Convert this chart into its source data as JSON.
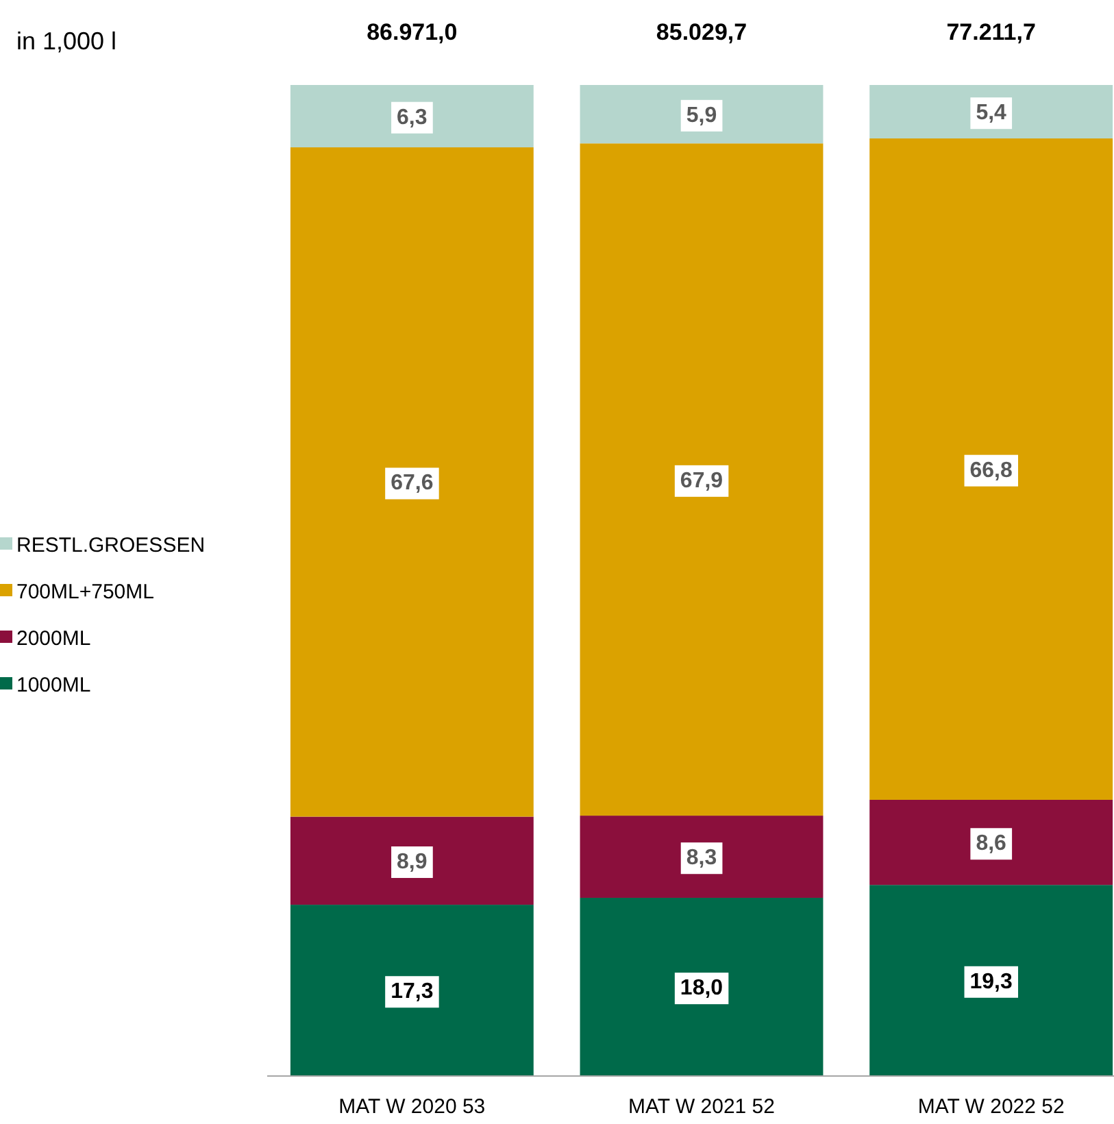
{
  "chart_data": {
    "type": "bar",
    "stacked": true,
    "legend": "left",
    "categories": [
      "MAT W 2020 53",
      "MAT W 2021 52",
      "MAT W 2022 52"
    ],
    "series": [
      {
        "name": "1000ML",
        "color": "#006a4a",
        "values": [
          17.3,
          18.0,
          19.3
        ],
        "value_labels": [
          "17,3",
          "18,0",
          "19,3"
        ]
      },
      {
        "name": "2000ML",
        "color": "#8b0f3c",
        "values": [
          8.9,
          8.3,
          8.6
        ],
        "value_labels": [
          "8,9",
          "8,3",
          "8,6"
        ]
      },
      {
        "name": "700ML+750ML",
        "color": "#dba200",
        "values": [
          67.6,
          67.9,
          66.8
        ],
        "value_labels": [
          "67,6",
          "67,9",
          "66,8"
        ]
      },
      {
        "name": "RESTL.GROESSEN",
        "color": "#b5d6cd",
        "values": [
          6.3,
          5.9,
          5.4
        ],
        "value_labels": [
          "6,3",
          "5,9",
          "5,4"
        ]
      }
    ],
    "annotations": [
      "in 1,000 l",
      "86.971,0",
      "85.029,7",
      "77.211,7"
    ]
  }
}
